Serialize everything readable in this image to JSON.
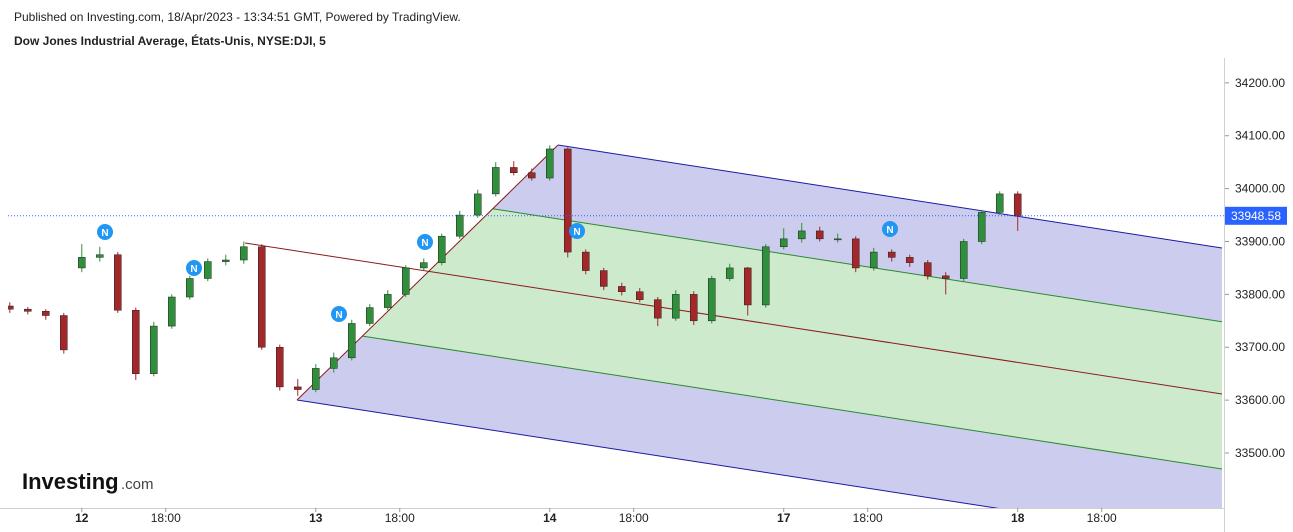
{
  "published": "Published on Investing.com, 18/Apr/2023 - 13:34:51 GMT, Powered by TradingView.",
  "logo": {
    "name": "Investing",
    "suffix": ".com"
  },
  "news_label": "N",
  "chart_data": {
    "type": "candlestick",
    "title": "Dow Jones Industrial Average, États-Unis, NYSE:DJI, 5",
    "up_color": "#2f8f3a",
    "down_color": "#a4282a",
    "last_price": 33948.58,
    "last_price_color": "#2962ff",
    "x": [
      -8,
      -6,
      -4,
      -2,
      0,
      2,
      4,
      6,
      8,
      10,
      12,
      14,
      16,
      18,
      20,
      22,
      24,
      26,
      28,
      30,
      32,
      34,
      36,
      38,
      40,
      42,
      44,
      46,
      48,
      50,
      52,
      54,
      56,
      58,
      60,
      62,
      64,
      66,
      68,
      70,
      72,
      74,
      76,
      78,
      80,
      82,
      84,
      86,
      88,
      90,
      92,
      94,
      96,
      98,
      100,
      102,
      104
    ],
    "open": [
      33778,
      33772,
      33768,
      33760,
      33850,
      33870,
      33875,
      33770,
      33650,
      33740,
      33795,
      33830,
      33862,
      33865,
      33890,
      33700,
      33625,
      33620,
      33660,
      33680,
      33745,
      33775,
      33800,
      33850,
      33860,
      33910,
      33950,
      33990,
      34040,
      34030,
      34020,
      34075,
      33880,
      33845,
      33815,
      33805,
      33790,
      33755,
      33800,
      33750,
      33830,
      33850,
      33780,
      33890,
      33905,
      33920,
      33905,
      33905,
      33850,
      33880,
      33870,
      33860,
      33835,
      33830,
      33900,
      33955,
      33990
    ],
    "high": [
      33785,
      33776,
      33772,
      33765,
      33895,
      33890,
      33880,
      33775,
      33748,
      33800,
      33835,
      33868,
      33875,
      33900,
      33895,
      33705,
      33640,
      33668,
      33690,
      33752,
      33782,
      33808,
      33855,
      33868,
      33915,
      33958,
      33998,
      34050,
      34052,
      34038,
      34082,
      34078,
      33885,
      33850,
      33822,
      33812,
      33795,
      33808,
      33806,
      33835,
      33858,
      33852,
      33895,
      33925,
      33935,
      33928,
      33915,
      33910,
      33888,
      33885,
      33875,
      33865,
      33842,
      33905,
      33960,
      33995,
      33995
    ],
    "low": [
      33765,
      33762,
      33752,
      33688,
      33842,
      33862,
      33765,
      33638,
      33645,
      33735,
      33790,
      33825,
      33855,
      33858,
      33695,
      33618,
      33608,
      33615,
      33652,
      33675,
      33740,
      33770,
      33795,
      33845,
      33855,
      33905,
      33945,
      33985,
      34025,
      34015,
      34015,
      33870,
      33838,
      33808,
      33798,
      33785,
      33740,
      33750,
      33742,
      33745,
      33825,
      33760,
      33775,
      33885,
      33898,
      33900,
      33898,
      33842,
      33845,
      33862,
      33852,
      33828,
      33800,
      33825,
      33895,
      33950,
      33920
    ],
    "close": [
      33772,
      33768,
      33760,
      33695,
      33870,
      33875,
      33770,
      33650,
      33740,
      33795,
      33830,
      33862,
      33865,
      33890,
      33700,
      33625,
      33620,
      33660,
      33680,
      33745,
      33775,
      33800,
      33850,
      33860,
      33910,
      33950,
      33990,
      34040,
      34030,
      34020,
      34075,
      33880,
      33845,
      33815,
      33805,
      33790,
      33755,
      33800,
      33750,
      33830,
      33850,
      33780,
      33890,
      33905,
      33920,
      33905,
      33905,
      33850,
      33880,
      33870,
      33860,
      33835,
      33830,
      33900,
      33955,
      33990,
      33949
    ],
    "xlim": [
      -8.2,
      126.7
    ],
    "xticks": [
      {
        "value": 0,
        "label": "12"
      },
      {
        "value": 9.33,
        "label": "18:00"
      },
      {
        "value": 26,
        "label": "13"
      },
      {
        "value": 35.33,
        "label": "18:00"
      },
      {
        "value": 52,
        "label": "14"
      },
      {
        "value": 61.33,
        "label": "18:00"
      },
      {
        "value": 78,
        "label": "17"
      },
      {
        "value": 87.33,
        "label": "18:00"
      },
      {
        "value": 104,
        "label": "18"
      },
      {
        "value": 113.33,
        "label": "18:00"
      }
    ],
    "ylim": [
      33396,
      34247
    ],
    "yticks": [
      {
        "value": 33500,
        "label": "33500.00"
      },
      {
        "value": 33600,
        "label": "33600.00"
      },
      {
        "value": 33700,
        "label": "33700.00"
      },
      {
        "value": 33800,
        "label": "33800.00"
      },
      {
        "value": 33900,
        "label": "33900.00"
      },
      {
        "value": 34000,
        "label": "34000.00"
      },
      {
        "value": 34100,
        "label": "34100.00"
      },
      {
        "value": 34200,
        "label": "34200.00"
      }
    ]
  }
}
